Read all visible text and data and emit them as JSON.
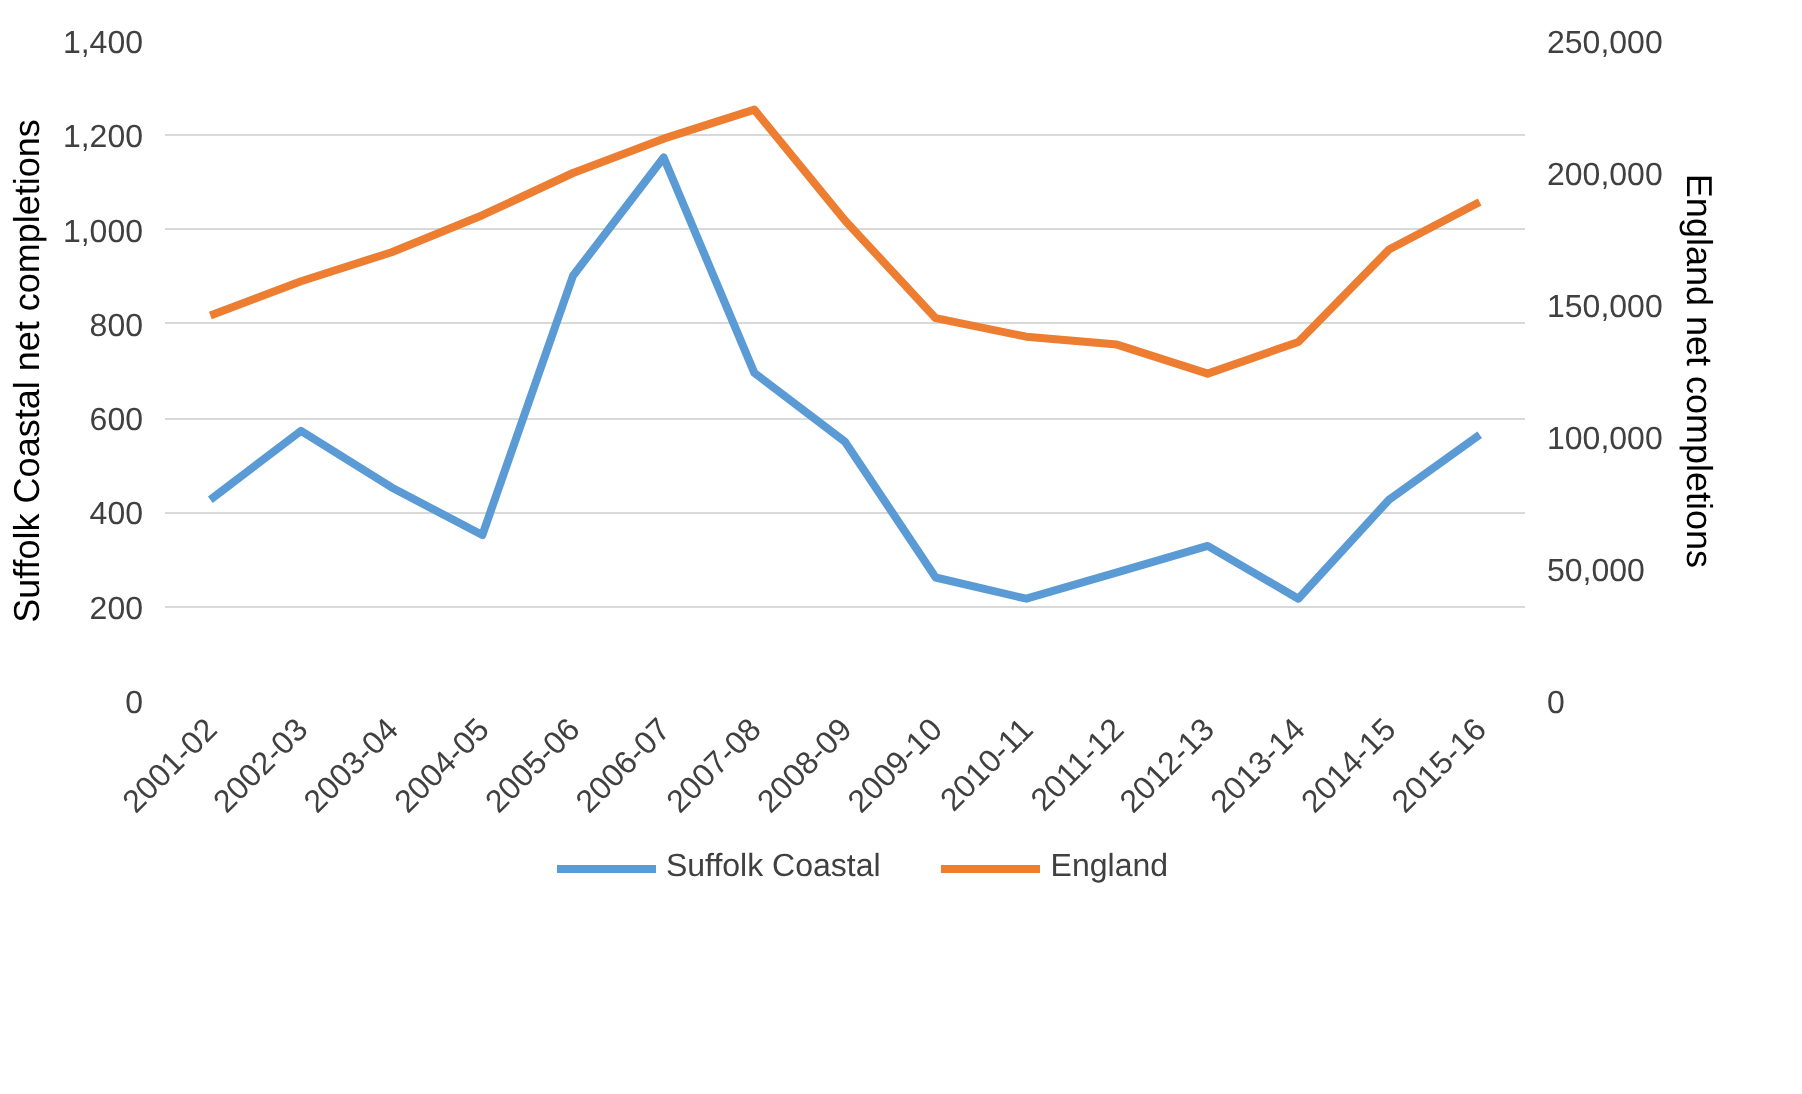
{
  "chart_data": {
    "type": "line",
    "ylabel": "Suffolk Coastal net completions",
    "y2label": "England net completions",
    "categories": [
      "2001-02",
      "2002-03",
      "2003-04",
      "2004-05",
      "2005-06",
      "2006-07",
      "2007-08",
      "2008-09",
      "2009-10",
      "2010-11",
      "2011-12",
      "2012-13",
      "2013-14",
      "2014-15",
      "2015-16"
    ],
    "series": [
      {
        "name": "Suffolk Coastal",
        "color": "#5b9bd5",
        "values": [
          427,
          573,
          453,
          352,
          902,
          1153,
          696,
          550,
          262,
          217,
          273,
          329,
          217,
          427,
          565
        ]
      },
      {
        "name": "England",
        "color": "#ed7d31",
        "axis": "y2",
        "values": [
          146000,
          159000,
          170000,
          184000,
          200000,
          213000,
          224000,
          182000,
          145000,
          138000,
          135000,
          124000,
          136000,
          171000,
          189000
        ]
      }
    ],
    "ylim": [
      0,
      1400
    ],
    "yticks": [
      0,
      {
        "value": 200,
        "label": "200"
      },
      400,
      600,
      800,
      {
        "value": 1000,
        "label": "1,000"
      },
      {
        "value": 1200,
        "label": "1,200"
      },
      {
        "value": 1400,
        "label": "1,400"
      }
    ],
    "y2lim": [
      0,
      250000
    ],
    "y2ticks": [
      0,
      {
        "value": 50000,
        "label": "50,000"
      },
      {
        "value": 100000,
        "label": "100,000"
      },
      {
        "value": 150000,
        "label": "150,000"
      },
      {
        "value": 200000,
        "label": "200,000"
      },
      {
        "value": 250000,
        "label": "250,000"
      }
    ],
    "grid": "y",
    "legend": "bottom",
    "line_style": "solid",
    "marker": "none"
  }
}
